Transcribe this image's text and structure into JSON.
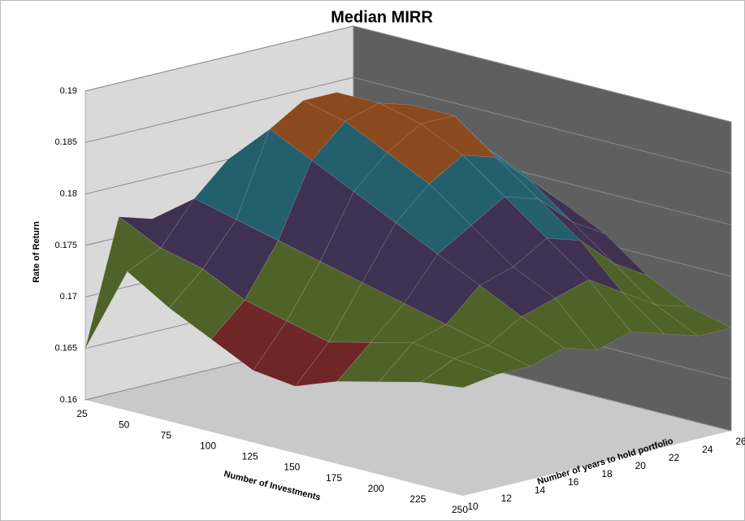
{
  "chart_data": {
    "type": "surface3d",
    "title": "Median MIRR",
    "y_label": "Rate of Return",
    "x_label": "Number of Investments",
    "depth_label": "Number of years to hold portfolio",
    "categories": [
      25,
      50,
      75,
      100,
      125,
      150,
      175,
      200,
      225,
      250
    ],
    "depth_categories": [
      10,
      12,
      14,
      16,
      18,
      20,
      22,
      24,
      26
    ],
    "z": [
      [
        0.165,
        0.1735,
        0.171,
        0.169,
        0.167,
        0.1665,
        0.168,
        0.169,
        0.17,
        0.1705
      ],
      [
        0.177,
        0.175,
        0.174,
        0.172,
        0.171,
        0.17,
        0.171,
        0.172,
        0.1715,
        0.171
      ],
      [
        0.176,
        0.179,
        0.178,
        0.177,
        0.176,
        0.175,
        0.174,
        0.173,
        0.172,
        0.171
      ],
      [
        0.175,
        0.182,
        0.186,
        0.184,
        0.182,
        0.18,
        0.178,
        0.176,
        0.174,
        0.172
      ],
      [
        0.174,
        0.183,
        0.188,
        0.187,
        0.185,
        0.183,
        0.18,
        0.177,
        0.175,
        0.171
      ],
      [
        0.173,
        0.182,
        0.188,
        0.188,
        0.187,
        0.185,
        0.182,
        0.179,
        0.176,
        0.172
      ],
      [
        0.172,
        0.18,
        0.186,
        0.187,
        0.187,
        0.184,
        0.181,
        0.178,
        0.174,
        0.171
      ],
      [
        0.171,
        0.178,
        0.183,
        0.184,
        0.183,
        0.181,
        0.178,
        0.175,
        0.172,
        0.17
      ],
      [
        0.17,
        0.176,
        0.18,
        0.181,
        0.18,
        0.178,
        0.176,
        0.173,
        0.171,
        0.17
      ]
    ],
    "ylim": [
      0.16,
      0.19
    ],
    "yticks": [
      0.16,
      0.165,
      0.17,
      0.175,
      0.18,
      0.185,
      0.19
    ],
    "band_colors": [
      "#2c4d75",
      "#6e2626",
      "#4f6228",
      "#3f3151",
      "#245f6e",
      "#8a4a1e"
    ],
    "grid": true
  }
}
